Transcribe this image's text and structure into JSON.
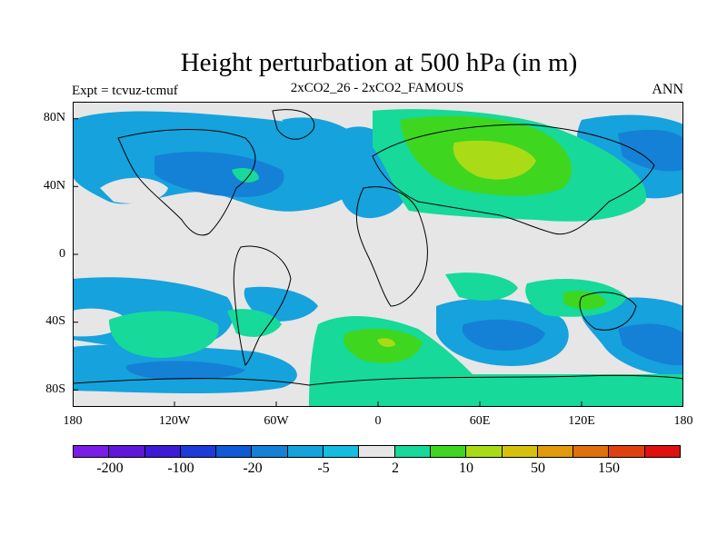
{
  "title": "Height perturbation at 500 hPa (in m)",
  "subtitle_left": "Expt = tcvuz-tcmuf",
  "subtitle_center": "2xCO2_26 - 2xCO2_FAMOUS",
  "subtitle_right": "ANN",
  "map": {
    "lat_ticks": [
      "80N",
      "40N",
      "0",
      "40S",
      "80S"
    ],
    "lon_ticks": [
      "180",
      "120W",
      "60W",
      "0",
      "60E",
      "120E",
      "180"
    ],
    "background_color": "#e6e6e6"
  },
  "colorbar": {
    "colors": [
      "#7a1de6",
      "#5f17d9",
      "#3d1bd6",
      "#1e3ad8",
      "#0f5ad6",
      "#1581d6",
      "#16a2dc",
      "#14bce0",
      "#e6e6e6",
      "#16d99a",
      "#3fd61f",
      "#a9dc16",
      "#d6c20c",
      "#e09a0c",
      "#e0700c",
      "#e04010",
      "#e01010"
    ],
    "labels": [
      "-200",
      "-100",
      "-20",
      "-5",
      "2",
      "10",
      "50",
      "150"
    ]
  }
}
